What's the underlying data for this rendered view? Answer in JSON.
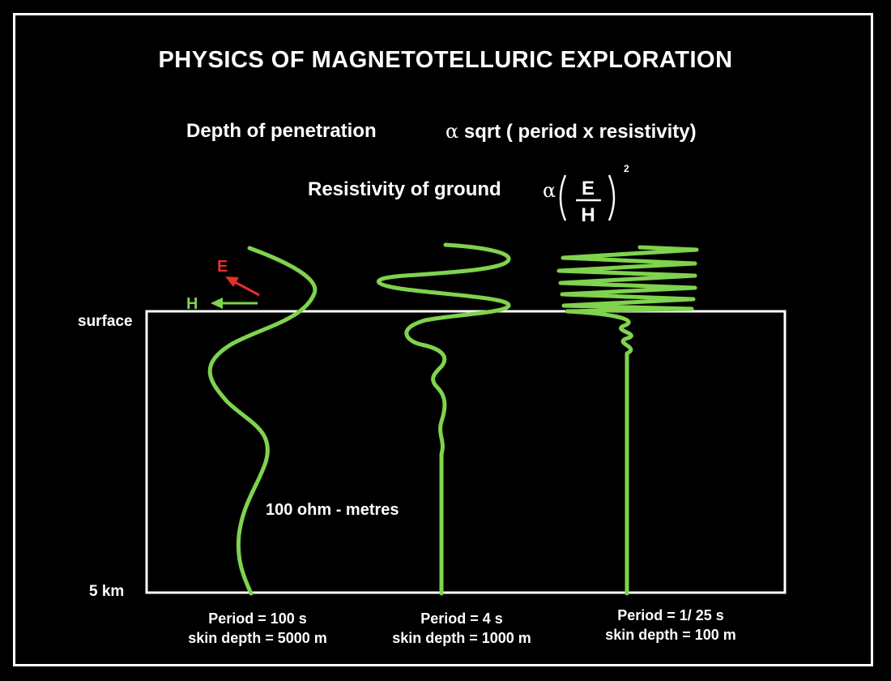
{
  "title": "PHYSICS OF MAGNETOTELLURIC EXPLORATION",
  "equation1": {
    "left": "Depth of penetration",
    "symbol": "α",
    "right": "sqrt ( period x resistivity)"
  },
  "equation2": {
    "left": "Resistivity of ground",
    "symbol": "α",
    "numerator": "E",
    "denominator": "H",
    "exponent": "2"
  },
  "labels": {
    "surface": "surface",
    "depth": "5 km",
    "E": "E",
    "H": "H",
    "resistivity": "100 ohm - metres"
  },
  "waves": [
    {
      "period": "Period = 100 s",
      "skin": "skin depth = 5000  m"
    },
    {
      "period": "Period = 4 s",
      "skin": "skin depth = 1000  m"
    },
    {
      "period": "Period = 1/ 25  s",
      "skin": "skin depth = 100 m"
    }
  ],
  "colors": {
    "wave": "#7fd34e",
    "E_arrow": "#e0322a",
    "H_arrow": "#7fd34e",
    "box": "#ffffff"
  }
}
